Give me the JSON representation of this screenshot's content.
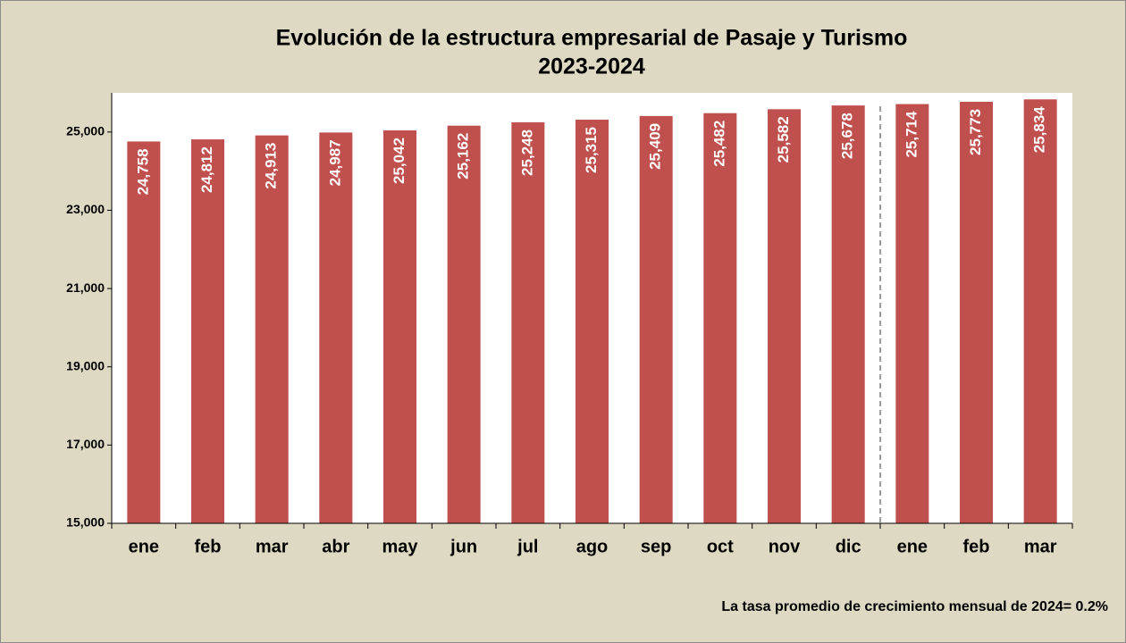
{
  "chart_data": {
    "type": "bar",
    "title": "Evolución de la estructura empresarial de Pasaje y Turismo",
    "subtitle": "2023-2024",
    "categories": [
      "ene",
      "feb",
      "mar",
      "abr",
      "may",
      "jun",
      "jul",
      "ago",
      "sep",
      "oct",
      "nov",
      "dic",
      "ene",
      "feb",
      "mar"
    ],
    "values": [
      24758,
      24812,
      24913,
      24987,
      25042,
      25162,
      25248,
      25315,
      25409,
      25482,
      25582,
      25678,
      25714,
      25773,
      25834
    ],
    "value_labels": [
      "24,758",
      "24,812",
      "24,913",
      "24,987",
      "25,042",
      "25,162",
      "25,248",
      "25,315",
      "25,409",
      "25,482",
      "25,582",
      "25,678",
      "25,714",
      "25,773",
      "25,834"
    ],
    "color": "#c0504d",
    "ylim": [
      15000,
      26000
    ],
    "yticks": [
      {
        "value": 15000,
        "label": "15,000"
      },
      {
        "value": 17000,
        "label": "17,000"
      },
      {
        "value": 19000,
        "label": "19,000"
      },
      {
        "value": 21000,
        "label": "21,000"
      },
      {
        "value": 23000,
        "label": "23,000"
      },
      {
        "value": 25000,
        "label": "25,000"
      }
    ],
    "grid": false,
    "annotation": "La tasa promedio de crecimiento mensual de 2024= 0.2%"
  }
}
